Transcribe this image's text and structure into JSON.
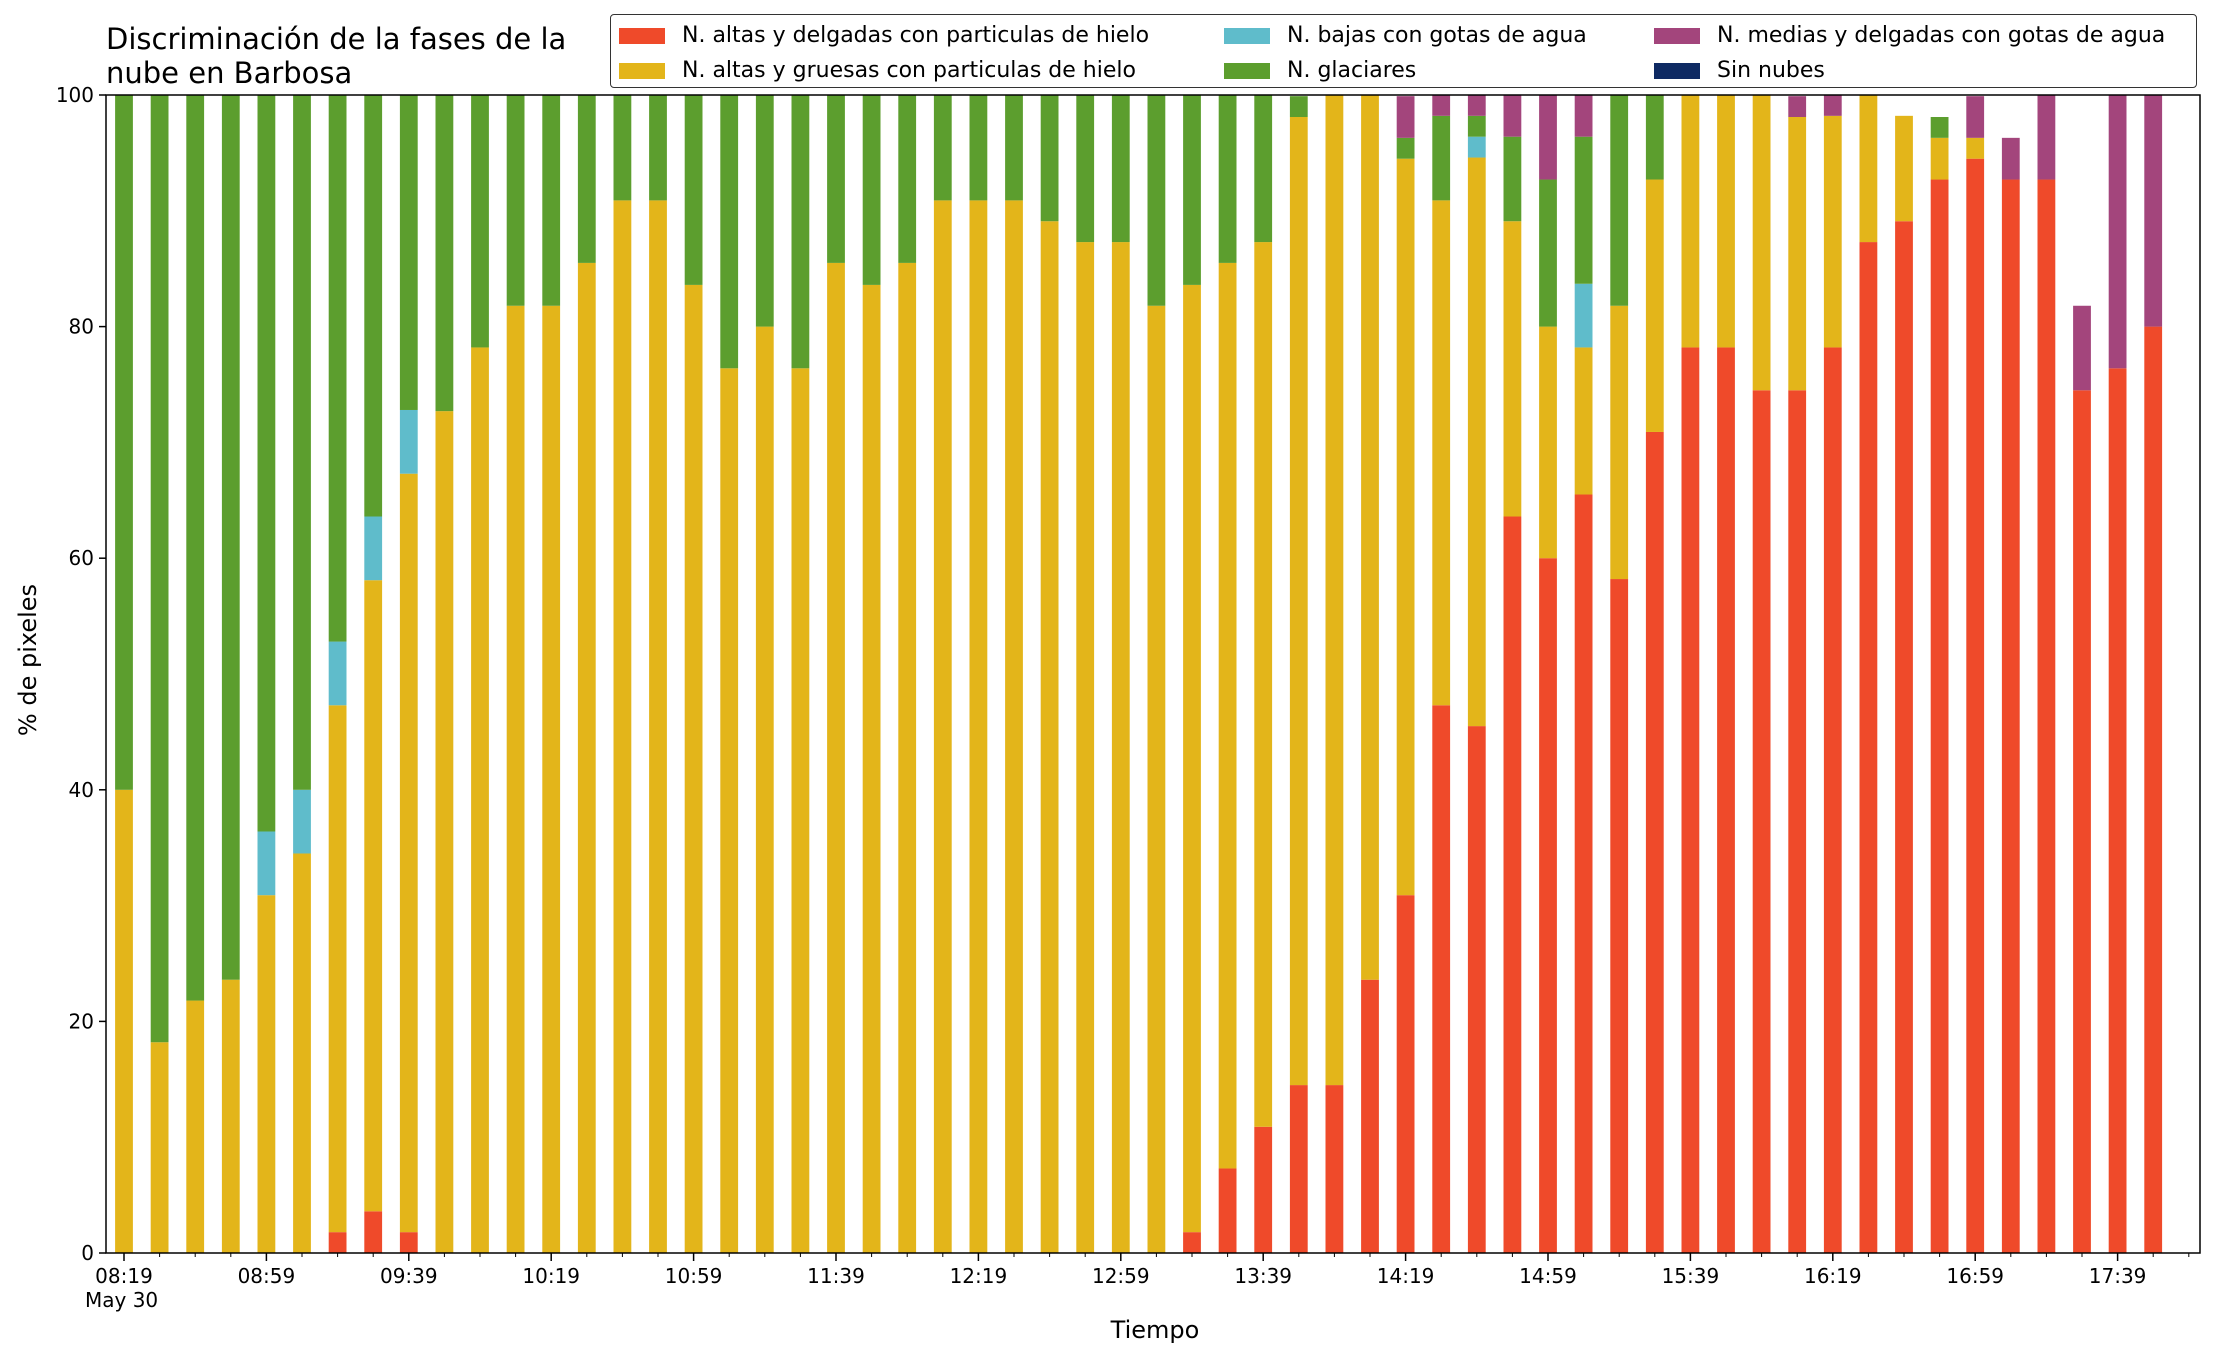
{
  "chart_data": {
    "type": "bar",
    "stacked": true,
    "title": "Discriminación de la fases de la\nnube en Barbosa",
    "xlabel": "Tiempo",
    "ylabel": "% de pixeles",
    "ylim": [
      0,
      100
    ],
    "yticks": [
      0,
      20,
      40,
      60,
      80,
      100
    ],
    "grid": false,
    "legend_position": "top-right",
    "x_sublabel": "May 30",
    "x_tick_labels": [
      "08:19",
      "08:59",
      "09:39",
      "10:19",
      "10:59",
      "11:39",
      "12:19",
      "12:59",
      "13:39",
      "14:19",
      "14:59",
      "15:39",
      "16:19",
      "16:59",
      "17:39"
    ],
    "categories": [
      "08:19",
      "08:29",
      "08:39",
      "08:49",
      "08:59",
      "09:09",
      "09:19",
      "09:29",
      "09:39",
      "09:49",
      "09:59",
      "10:09",
      "10:19",
      "10:29",
      "10:39",
      "10:49",
      "10:59",
      "11:09",
      "11:19",
      "11:29",
      "11:39",
      "11:49",
      "11:59",
      "12:09",
      "12:19",
      "12:29",
      "12:39",
      "12:49",
      "12:59",
      "13:09",
      "13:19",
      "13:29",
      "13:39",
      "13:49",
      "13:59",
      "14:09",
      "14:19",
      "14:29",
      "14:39",
      "14:49",
      "14:59",
      "15:09",
      "15:19",
      "15:29",
      "15:39",
      "15:49",
      "15:59",
      "16:09",
      "16:19",
      "16:29",
      "16:39",
      "16:49",
      "16:59",
      "17:09",
      "17:19",
      "17:29",
      "17:39",
      "17:49"
    ],
    "series": [
      {
        "name": "N. altas y delgadas con particulas de hielo",
        "color": "#ef4a2a",
        "values": [
          0,
          0,
          0,
          0,
          0,
          0,
          1.8,
          3.6,
          1.8,
          0,
          0,
          0,
          0,
          0,
          0,
          0,
          0,
          0,
          0,
          0,
          0,
          0,
          0,
          0,
          0,
          0,
          0,
          0,
          0,
          0,
          1.8,
          7.3,
          10.9,
          14.5,
          14.5,
          23.6,
          30.9,
          47.3,
          45.5,
          63.6,
          60.0,
          65.5,
          58.2,
          70.9,
          78.2,
          78.2,
          74.5,
          74.5,
          78.2,
          87.3,
          89.1,
          92.7,
          94.5,
          92.7,
          92.7,
          74.5,
          76.4,
          80.0
        ]
      },
      {
        "name": "N. altas y gruesas con particulas de hielo",
        "color": "#e3b51a",
        "values": [
          40.0,
          18.2,
          21.8,
          23.6,
          30.9,
          34.5,
          45.5,
          54.5,
          65.5,
          72.7,
          78.2,
          81.8,
          81.8,
          85.5,
          90.9,
          90.9,
          83.6,
          76.4,
          80.0,
          76.4,
          85.5,
          83.6,
          85.5,
          90.9,
          90.9,
          90.9,
          89.1,
          87.3,
          87.3,
          81.8,
          81.8,
          78.2,
          76.4,
          83.6,
          85.5,
          76.4,
          63.6,
          43.6,
          49.1,
          25.5,
          20.0,
          12.7,
          23.6,
          21.8,
          21.8,
          21.8,
          25.5,
          23.6,
          20.0,
          12.7,
          9.1,
          3.6,
          1.8,
          0,
          0,
          0,
          0,
          0
        ]
      },
      {
        "name": "N. bajas con gotas de agua",
        "color": "#5fbccb",
        "values": [
          0,
          0,
          0,
          0,
          5.5,
          5.5,
          5.5,
          5.5,
          5.5,
          0,
          0,
          0,
          0,
          0,
          0,
          0,
          0,
          0,
          0,
          0,
          0,
          0,
          0,
          0,
          0,
          0,
          0,
          0,
          0,
          0,
          0,
          0,
          0,
          0,
          0,
          0,
          0,
          0,
          1.8,
          0,
          0,
          5.5,
          0,
          0,
          0,
          0,
          0,
          0,
          0,
          0,
          0,
          0,
          0,
          0,
          0,
          0,
          0,
          0
        ]
      },
      {
        "name": "N. glaciares",
        "color": "#5c9e2e",
        "values": [
          60.0,
          81.8,
          78.2,
          76.4,
          63.6,
          60.0,
          47.3,
          36.4,
          27.3,
          27.3,
          21.8,
          18.2,
          18.2,
          14.5,
          9.1,
          9.1,
          16.4,
          23.6,
          20.0,
          23.6,
          14.5,
          16.4,
          14.5,
          9.1,
          9.1,
          9.1,
          10.9,
          12.7,
          12.7,
          18.2,
          16.4,
          14.5,
          12.7,
          1.8,
          0,
          0,
          1.8,
          7.3,
          1.8,
          7.3,
          12.7,
          12.7,
          18.2,
          7.3,
          0,
          0,
          0,
          0,
          0,
          0,
          0,
          1.8,
          0,
          0,
          0,
          0,
          0,
          0
        ]
      },
      {
        "name": "N. medias y delgadas con gotas de agua",
        "color": "#a3457c",
        "values": [
          0,
          0,
          0,
          0,
          0,
          0,
          0,
          0,
          0,
          0,
          0,
          0,
          0,
          0,
          0,
          0,
          0,
          0,
          0,
          0,
          0,
          0,
          0,
          0,
          0,
          0,
          0,
          0,
          0,
          0,
          0,
          0,
          0,
          0,
          0,
          0,
          3.6,
          1.8,
          1.8,
          3.6,
          7.3,
          3.6,
          0,
          0,
          0,
          0,
          0,
          1.8,
          1.8,
          0,
          0,
          0,
          3.6,
          3.6,
          7.3,
          7.3,
          25.5,
          23.6
        ]
      },
      {
        "name": "Sin nubes",
        "color": "#0e2a63",
        "values": [
          0,
          0,
          0,
          0,
          0,
          0,
          0,
          0,
          0,
          0,
          0,
          0,
          0,
          0,
          0,
          0,
          0,
          0,
          0,
          0,
          0,
          0,
          0,
          0,
          0,
          0,
          0,
          0,
          0,
          0,
          0,
          0,
          0,
          0,
          0,
          0,
          0,
          0,
          0,
          0,
          0,
          0,
          0,
          0,
          0,
          0,
          0,
          0,
          0,
          0,
          0,
          0,
          0,
          0,
          0,
          0,
          0,
          0
        ]
      }
    ]
  }
}
